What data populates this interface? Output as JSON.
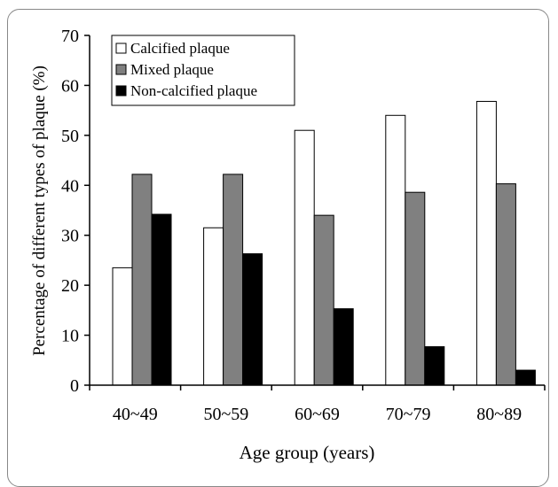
{
  "chart_data": {
    "type": "bar",
    "title": "",
    "xlabel": "Age group (years)",
    "ylabel": "Percentage of different types of plaque (%)",
    "categories": [
      "40~49",
      "50~59",
      "60~69",
      "70~79",
      "80~89"
    ],
    "ylim": [
      0,
      70
    ],
    "yticks": [
      "0",
      "10",
      "20",
      "30",
      "40",
      "50",
      "60",
      "70"
    ],
    "grid": false,
    "legend_position": "top-left",
    "series": [
      {
        "name": "Calcified plaque",
        "color": "#ffffff",
        "values": [
          23.5,
          31.5,
          51,
          54,
          56.8
        ]
      },
      {
        "name": "Mixed plaque",
        "color": "#808080",
        "values": [
          42.2,
          42.2,
          34,
          38.6,
          40.3
        ]
      },
      {
        "name": "Non-calcified plaque",
        "color": "#000000",
        "values": [
          34.2,
          26.3,
          15.3,
          7.7,
          3
        ]
      }
    ]
  }
}
